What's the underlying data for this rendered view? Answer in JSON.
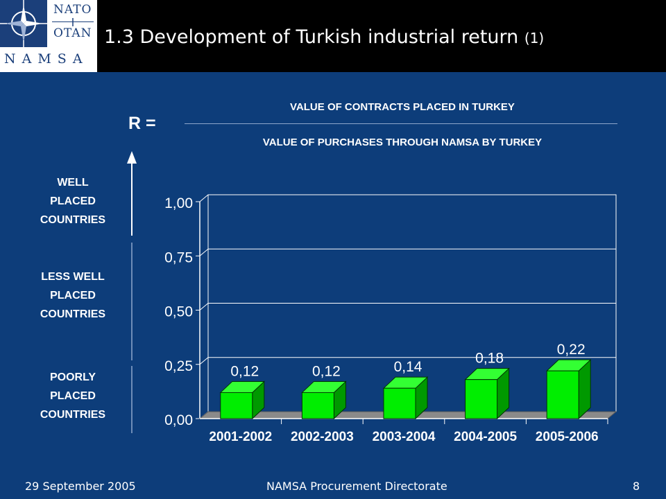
{
  "header": {
    "logo_text": {
      "top": "NATO",
      "bottom": "OTAN",
      "org": "NAMSA"
    },
    "title_main": "1.3 Development of Turkish industrial return",
    "title_suffix": "(1)"
  },
  "formula": {
    "lhs": "R =",
    "numerator": "VALUE  OF CONTRACTS  PLACED IN  TURKEY",
    "denominator": "VALUE  OF PURCHASES THROUGH NAMSA BY  TURKEY"
  },
  "zones": {
    "well": [
      "WELL",
      "PLACED",
      "COUNTRIES"
    ],
    "less_well": [
      "LESS WELL",
      "PLACED",
      "COUNTRIES"
    ],
    "poorly": [
      "POORLY",
      "PLACED",
      "COUNTRIES"
    ]
  },
  "colors": {
    "background": "#0d3d7a",
    "bar_front": "#00ee00",
    "bar_side": "#009900",
    "bar_top": "#33ff33",
    "floor": "#8a8a8a"
  },
  "chart_data": {
    "type": "bar",
    "categories": [
      "2001-2002",
      "2002-2003",
      "2003-2004",
      "2004-2005",
      "2005-2006"
    ],
    "values": [
      0.12,
      0.12,
      0.14,
      0.18,
      0.22
    ],
    "value_labels": [
      "0,12",
      "0,12",
      "0,14",
      "0,18",
      "0,22"
    ],
    "yticks": [
      0.0,
      0.25,
      0.5,
      0.75,
      1.0
    ],
    "ytick_labels": [
      "0,00",
      "0,25",
      "0,50",
      "0,75",
      "1,00"
    ],
    "ylim": [
      0,
      1.0
    ],
    "grid": true,
    "title": "",
    "xlabel": "",
    "ylabel": ""
  },
  "footer": {
    "date": "29 September 2005",
    "center": "NAMSA Procurement Directorate",
    "page": "8"
  }
}
